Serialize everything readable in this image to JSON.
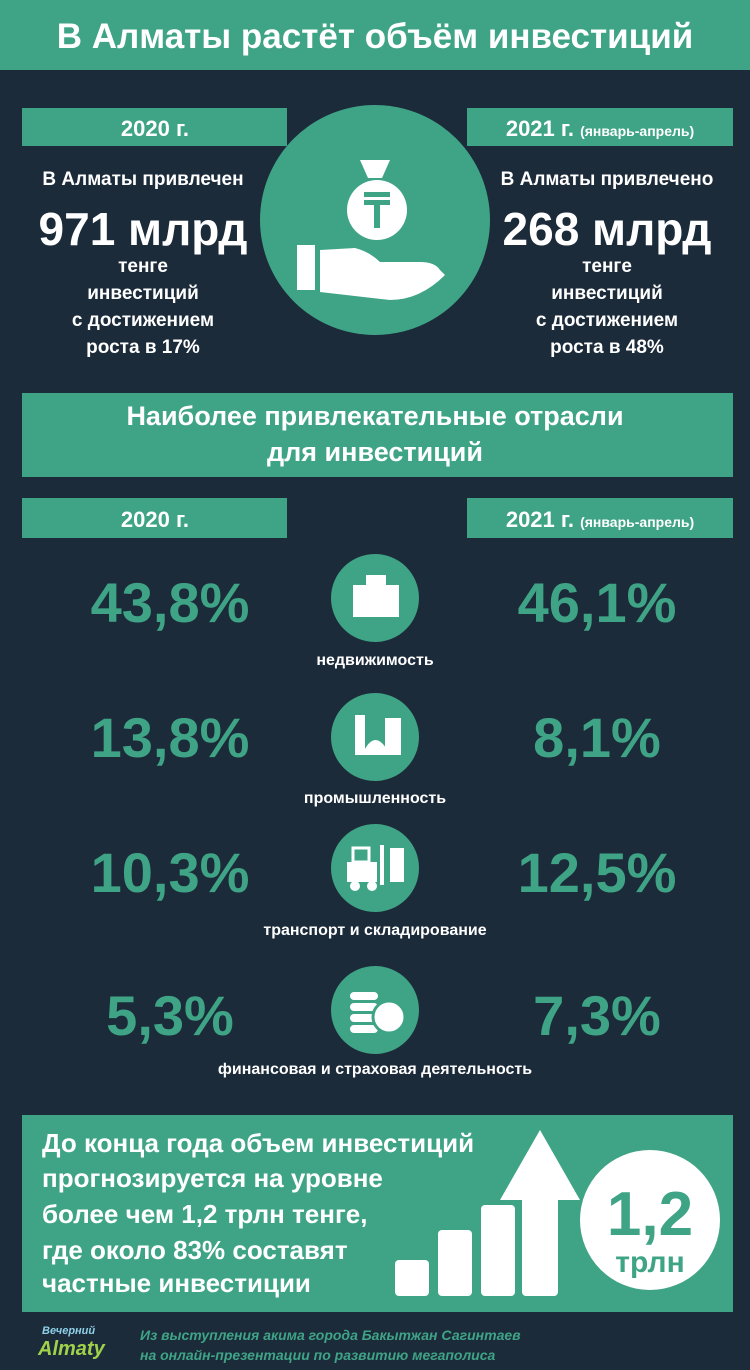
{
  "header": {
    "title": "В Алматы растёт объём инвестиций"
  },
  "summary": [
    {
      "year": "2020 г.",
      "lead": "В Алматы привлечен",
      "amount": "971 млрд",
      "details": [
        "тенге",
        "инвестиций",
        "с достижением",
        "роста в 17%"
      ]
    },
    {
      "year": "2021 г.",
      "period": "(январь-апрель)",
      "lead": "В Алматы привлечено",
      "amount": "268 млрд",
      "details": [
        "тенге",
        "инвестиций",
        "с достижением",
        "роста в 48%"
      ]
    }
  ],
  "sectors_heading": [
    "Наиболее привлекательные отрасли",
    "для инвестиций"
  ],
  "sector_years": [
    {
      "year": "2020 г."
    },
    {
      "year": "2021 г.",
      "period": "(январь-апрель)"
    }
  ],
  "sectors": [
    {
      "label": "недвижимость",
      "share_2020": "43,8%",
      "share_2021": "46,1%"
    },
    {
      "label": "промышленность",
      "share_2020": "13,8%",
      "share_2021": "8,1%"
    },
    {
      "label": "транспорт и складирование",
      "share_2020": "10,3%",
      "share_2021": "12,5%"
    },
    {
      "label": "финансовая и страховая деятельность",
      "share_2020": "5,3%",
      "share_2021": "7,3%"
    }
  ],
  "forecast": {
    "lines": [
      "До конца года объем инвестиций",
      "прогнозируется на уровне",
      "более чем 1,2 трлн тенге,",
      "где около 83% составят",
      "частные инвестиции"
    ],
    "badge_value": "1,2",
    "badge_unit": "трлн"
  },
  "footer": {
    "logo_top": "Вечерний",
    "logo_bottom": "Almaty",
    "source": [
      "Из выступления акима города Бакытжан Сагинтаев",
      "на онлайн-презентации по развитию мегаполиса"
    ]
  }
}
